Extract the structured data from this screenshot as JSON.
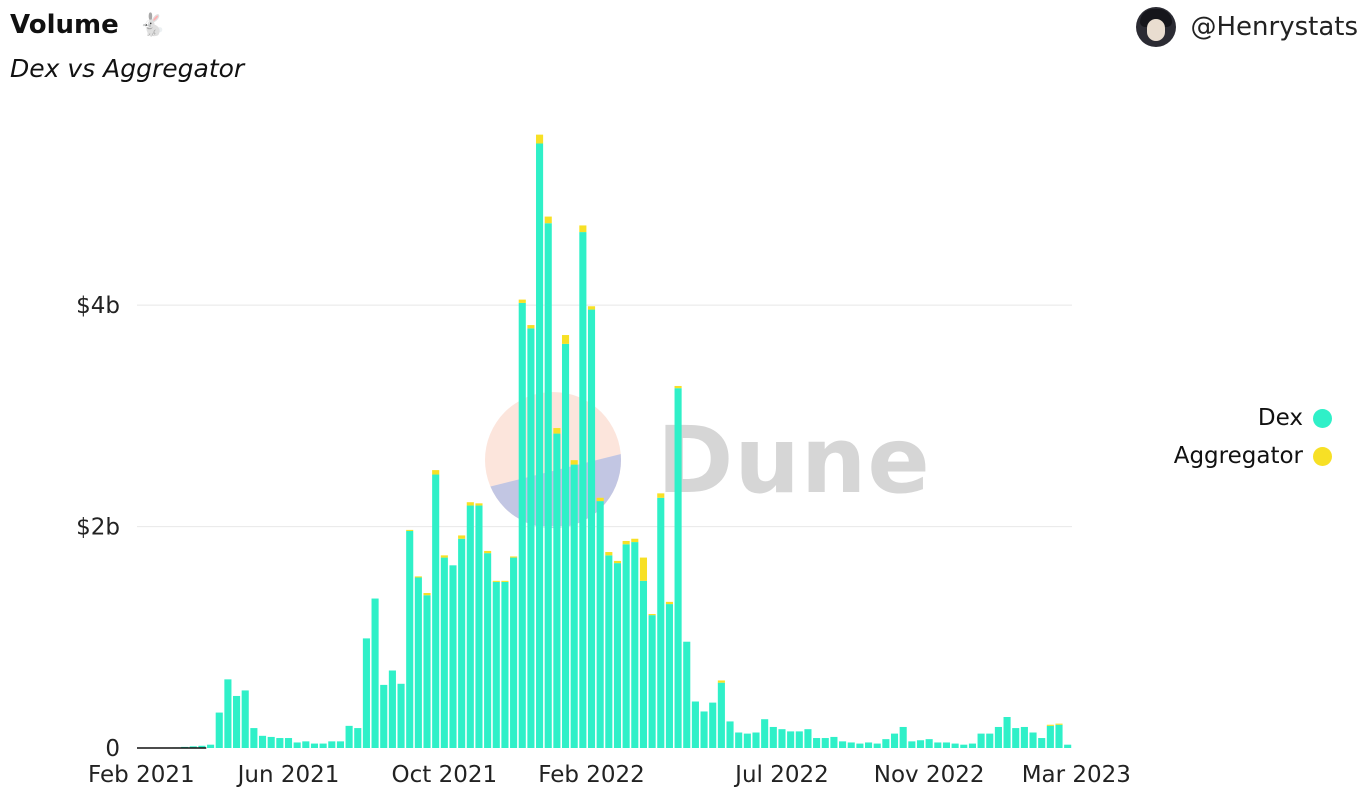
{
  "header": {
    "title": "Volume",
    "emoji": "🐇",
    "subtitle": "Dex vs Aggregator",
    "author": "@Henrystats"
  },
  "colors": {
    "dex": "#2ff0c8",
    "aggregator": "#f7e025",
    "grid": "#e8e8e8"
  },
  "watermark": {
    "text": "Dune"
  },
  "chart_data": {
    "type": "bar",
    "stacked": true,
    "x_start": "2021-02-01",
    "x_interval": "week",
    "ylim": [
      0,
      5600000000
    ],
    "y_ticks": [
      {
        "value": 0,
        "label": "0"
      },
      {
        "value": 2000000000,
        "label": "$2b"
      },
      {
        "value": 4000000000,
        "label": "$4b"
      }
    ],
    "x_ticks": [
      {
        "index": 0,
        "label": "Feb 2021"
      },
      {
        "index": 17,
        "label": "Jun 2021"
      },
      {
        "index": 35,
        "label": "Oct 2021"
      },
      {
        "index": 52,
        "label": "Feb 2022"
      },
      {
        "index": 74,
        "label": "Jul 2022"
      },
      {
        "index": 91,
        "label": "Nov 2022"
      },
      {
        "index": 108,
        "label": "Mar 2023"
      }
    ],
    "grid": true,
    "legend_position": "right",
    "series": [
      {
        "name": "Dex",
        "values": [
          1000000,
          2000000,
          3000000,
          4000000,
          5000000,
          10000000,
          15000000,
          20000000,
          30000000,
          320000000,
          620000000,
          470000000,
          520000000,
          180000000,
          110000000,
          100000000,
          90000000,
          90000000,
          50000000,
          60000000,
          40000000,
          40000000,
          60000000,
          60000000,
          200000000,
          180000000,
          990000000,
          1350000000,
          570000000,
          700000000,
          580000000,
          1960000000,
          1540000000,
          1380000000,
          2470000000,
          1720000000,
          1650000000,
          1890000000,
          2190000000,
          2190000000,
          1760000000,
          1500000000,
          1500000000,
          1720000000,
          4020000000,
          3790000000,
          5460000000,
          4740000000,
          2840000000,
          3650000000,
          2560000000,
          4660000000,
          3960000000,
          2230000000,
          1740000000,
          1670000000,
          1840000000,
          1860000000,
          1510000000,
          1200000000,
          2260000000,
          1300000000,
          3250000000,
          960000000,
          420000000,
          330000000,
          410000000,
          590000000,
          240000000,
          140000000,
          130000000,
          140000000,
          260000000,
          190000000,
          170000000,
          150000000,
          150000000,
          170000000,
          90000000,
          90000000,
          100000000,
          60000000,
          50000000,
          40000000,
          50000000,
          40000000,
          80000000,
          130000000,
          190000000,
          60000000,
          70000000,
          80000000,
          50000000,
          50000000,
          40000000,
          30000000,
          40000000,
          130000000,
          130000000,
          190000000,
          280000000,
          180000000,
          190000000,
          140000000,
          90000000,
          200000000,
          210000000,
          30000000
        ],
        "color_key": "dex"
      },
      {
        "name": "Aggregator",
        "values": [
          0,
          0,
          0,
          0,
          0,
          0,
          0,
          0,
          0,
          0,
          0,
          0,
          0,
          0,
          0,
          0,
          0,
          0,
          0,
          0,
          0,
          0,
          0,
          0,
          0,
          0,
          0,
          0,
          0,
          0,
          0,
          10000000,
          10000000,
          20000000,
          40000000,
          20000000,
          0,
          30000000,
          30000000,
          20000000,
          20000000,
          10000000,
          10000000,
          10000000,
          30000000,
          30000000,
          80000000,
          60000000,
          50000000,
          80000000,
          40000000,
          60000000,
          30000000,
          30000000,
          30000000,
          20000000,
          30000000,
          30000000,
          210000000,
          10000000,
          40000000,
          20000000,
          20000000,
          0,
          0,
          0,
          0,
          20000000,
          0,
          0,
          0,
          0,
          0,
          0,
          0,
          0,
          0,
          0,
          0,
          0,
          0,
          0,
          0,
          0,
          0,
          0,
          0,
          0,
          0,
          0,
          0,
          0,
          0,
          0,
          0,
          0,
          0,
          0,
          0,
          0,
          0,
          0,
          0,
          0,
          0,
          10000000,
          10000000,
          0
        ],
        "color_key": "aggregator"
      }
    ]
  }
}
